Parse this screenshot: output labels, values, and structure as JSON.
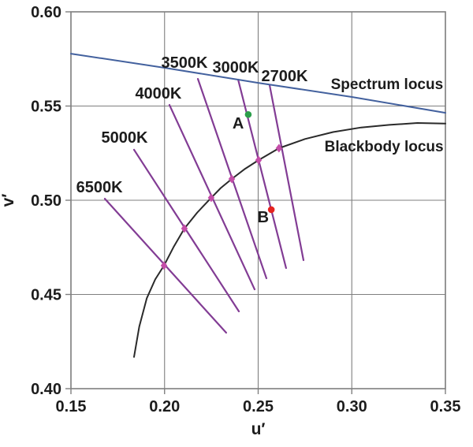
{
  "chart_data": {
    "type": "line",
    "xlabel": "u′",
    "ylabel": "v′",
    "xlim": [
      0.15,
      0.35
    ],
    "ylim": [
      0.4,
      0.6
    ],
    "xticks": [
      0.15,
      0.2,
      0.25,
      0.3,
      0.35
    ],
    "xtick_labels": [
      "0.15",
      "0.20",
      "0.25",
      "0.30",
      "0.35"
    ],
    "yticks": [
      0.4,
      0.45,
      0.5,
      0.55,
      0.6
    ],
    "ytick_labels": [
      "0.40",
      "0.45",
      "0.50",
      "0.55",
      "0.60"
    ],
    "grid": true,
    "legend": "none (inline annotations)",
    "series": [
      {
        "name": "Spectrum locus",
        "color": "#43619e",
        "width": 2,
        "points": [
          [
            0.15,
            0.5778
          ],
          [
            0.2,
            0.5703
          ],
          [
            0.25,
            0.5623
          ],
          [
            0.3,
            0.5548
          ],
          [
            0.35,
            0.5464
          ]
        ]
      },
      {
        "name": "Blackbody locus",
        "color": "#2a2a2a",
        "width": 2,
        "points": [
          [
            0.1837,
            0.4168
          ],
          [
            0.1865,
            0.433
          ],
          [
            0.1905,
            0.448
          ],
          [
            0.195,
            0.458
          ],
          [
            0.1997,
            0.4653
          ],
          [
            0.205,
            0.4755
          ],
          [
            0.2106,
            0.485
          ],
          [
            0.2175,
            0.4935
          ],
          [
            0.2249,
            0.5013
          ],
          [
            0.23,
            0.5065
          ],
          [
            0.2359,
            0.5113
          ],
          [
            0.243,
            0.5167
          ],
          [
            0.2502,
            0.5213
          ],
          [
            0.2611,
            0.5276
          ],
          [
            0.275,
            0.5325
          ],
          [
            0.29,
            0.5362
          ],
          [
            0.305,
            0.5386
          ],
          [
            0.32,
            0.54
          ],
          [
            0.335,
            0.541
          ],
          [
            0.35,
            0.5407
          ]
        ]
      }
    ],
    "annotations": [
      {
        "text": "Spectrum locus",
        "pos": [
          0.3188,
          0.5619
        ]
      },
      {
        "text": "Blackbody locus",
        "pos": [
          0.3172,
          0.5289
        ]
      }
    ],
    "isotherm_color": "#823c94",
    "isotherm_marker_color": "#c44da8",
    "isotherms": [
      {
        "label": "6500K",
        "line": [
          [
            0.1681,
            0.5008
          ],
          [
            0.2329,
            0.4297
          ]
        ],
        "locus_point": [
          0.1997,
          0.4653
        ],
        "label_pos": [
          0.1652,
          0.5071
        ]
      },
      {
        "label": "5000K",
        "line": [
          [
            0.1837,
            0.5268
          ],
          [
            0.2397,
            0.441
          ]
        ],
        "locus_point": [
          0.2106,
          0.485
        ],
        "label_pos": [
          0.1786,
          0.5335
        ]
      },
      {
        "label": "4000K",
        "line": [
          [
            0.2026,
            0.5506
          ],
          [
            0.2481,
            0.4527
          ]
        ],
        "locus_point": [
          0.2249,
          0.5013
        ],
        "label_pos": [
          0.1967,
          0.5569
        ]
      },
      {
        "label": "3500K",
        "line": [
          [
            0.2178,
            0.5644
          ],
          [
            0.2544,
            0.4586
          ]
        ],
        "locus_point": [
          0.2359,
          0.5113
        ],
        "label_pos": [
          0.2106,
          0.5732
        ]
      },
      {
        "label": "3000K",
        "line": [
          [
            0.2393,
            0.564
          ],
          [
            0.2649,
            0.464
          ]
        ],
        "locus_point": [
          0.2502,
          0.5213
        ],
        "label_pos": [
          0.238,
          0.5707
        ]
      },
      {
        "label": "2700K",
        "line": [
          [
            0.2561,
            0.5611
          ],
          [
            0.2742,
            0.4682
          ]
        ],
        "locus_point": [
          0.2611,
          0.5276
        ],
        "label_pos": [
          0.2641,
          0.5661
        ]
      }
    ],
    "points": [
      {
        "label": "A",
        "color": "#2b9e4a",
        "u": 0.2447,
        "v": 0.5455,
        "label_pos": [
          0.2393,
          0.541
        ]
      },
      {
        "label": "B",
        "color": "#e5231f",
        "u": 0.257,
        "v": 0.495,
        "label_pos": [
          0.2527,
          0.4912
        ]
      }
    ],
    "colors": {
      "background": "#ffffff",
      "grid": "#7f7f7f",
      "border": "#7f7f7f",
      "text": "#1c1c1c"
    }
  }
}
